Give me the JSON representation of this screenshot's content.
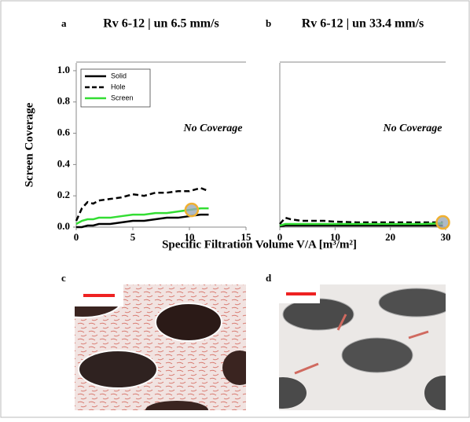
{
  "chart_data": [
    {
      "type": "line",
      "panel": "a",
      "title": "Rv 6-12 | un 6.5 mm/s",
      "ylabel": "Screen Coverage",
      "xlabel": "Specific Filtration Volume V/A [m³/m²]",
      "annotation": "No Coverage",
      "legend": "upper left",
      "xlim": [
        0,
        15
      ],
      "xticks": [
        0,
        5,
        10,
        15
      ],
      "ylim": [
        0,
        1.05
      ],
      "yticks": [
        {
          "value": 0,
          "label": "0.0"
        },
        0.2,
        0.4,
        0.6,
        0.8,
        {
          "value": 1,
          "label": "1.0"
        }
      ],
      "x": [
        0,
        0.5,
        1,
        1.5,
        2,
        3,
        4,
        5,
        6,
        7,
        8,
        9,
        10,
        11,
        11.7
      ],
      "series": [
        {
          "name": "Solid",
          "color": "#000000",
          "dashed": false,
          "values": [
            0,
            0,
            0.01,
            0.01,
            0.02,
            0.02,
            0.03,
            0.04,
            0.04,
            0.05,
            0.06,
            0.06,
            0.07,
            0.08,
            0.08
          ]
        },
        {
          "name": "Hole",
          "color": "#000000",
          "dashed": true,
          "values": [
            0.04,
            0.12,
            0.16,
            0.15,
            0.17,
            0.18,
            0.19,
            0.21,
            0.2,
            0.22,
            0.22,
            0.23,
            0.23,
            0.25,
            0.23
          ]
        },
        {
          "name": "Screen",
          "color": "#33dd33",
          "dashed": false,
          "values": [
            0.02,
            0.04,
            0.05,
            0.05,
            0.06,
            0.06,
            0.07,
            0.08,
            0.08,
            0.09,
            0.09,
            0.1,
            0.11,
            0.12,
            0.12
          ]
        }
      ],
      "highlight": {
        "x": 10.2,
        "y": 0.11,
        "color": "#f0b030"
      }
    },
    {
      "type": "line",
      "panel": "b",
      "title": "Rv 6-12 | un 33.4 mm/s",
      "annotation": "No Coverage",
      "xlim": [
        0,
        30
      ],
      "xticks": [
        0,
        10,
        20,
        30
      ],
      "ylim": [
        0,
        1.05
      ],
      "x": [
        0,
        1,
        2,
        4,
        6,
        8,
        10,
        14,
        18,
        22,
        26,
        29.5
      ],
      "series": [
        {
          "color": "#000000",
          "dashed": false,
          "values": [
            0.005,
            0.01,
            0.01,
            0.01,
            0.01,
            0.01,
            0.01,
            0.01,
            0.01,
            0.01,
            0.01,
            0.01
          ]
        },
        {
          "color": "#000000",
          "dashed": true,
          "values": [
            0.02,
            0.06,
            0.05,
            0.04,
            0.04,
            0.04,
            0.035,
            0.03,
            0.03,
            0.03,
            0.03,
            0.03
          ]
        },
        {
          "color": "#33dd33",
          "dashed": false,
          "values": [
            0.01,
            0.02,
            0.02,
            0.02,
            0.02,
            0.02,
            0.02,
            0.02,
            0.02,
            0.02,
            0.02,
            0.025
          ]
        }
      ],
      "highlight": {
        "x": 29.5,
        "y": 0.03,
        "color": "#f0b030"
      }
    }
  ],
  "photos": [
    {
      "panel": "c"
    },
    {
      "panel": "d"
    }
  ]
}
